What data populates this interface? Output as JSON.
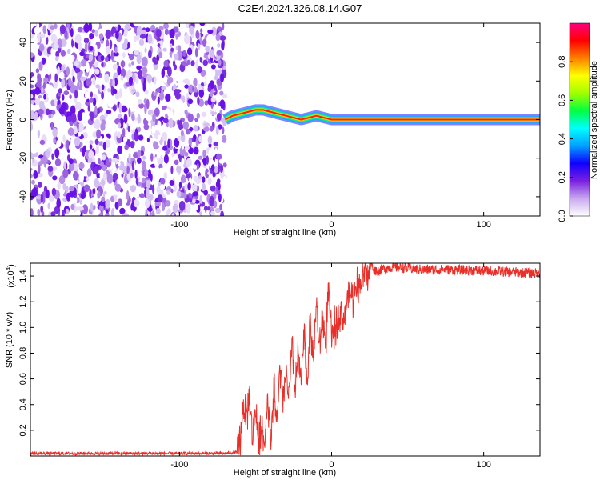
{
  "title": "C2E4.2024.326.08.14.G07",
  "chart_data": [
    {
      "type": "heatmap",
      "xlabel": "Height of straight line (km)",
      "ylabel": "Frequency (Hz)",
      "xlim": [
        -198,
        137
      ],
      "ylim": [
        -50,
        50
      ],
      "xticks": [
        -100,
        0,
        100
      ],
      "yticks": [
        -40,
        -20,
        0,
        20,
        40
      ],
      "noise_region_x": [
        -198,
        -70
      ],
      "signal_track": {
        "x": [
          -70,
          -65,
          -60,
          -55,
          -50,
          -45,
          -40,
          -35,
          -30,
          -25,
          -20,
          -15,
          -10,
          -5,
          0,
          10,
          20,
          40,
          60,
          80,
          100,
          120,
          137
        ],
        "frequency": [
          0,
          2,
          3,
          4,
          5,
          5,
          4,
          3,
          2,
          1,
          0,
          1,
          2,
          1,
          0,
          0,
          0,
          0,
          0,
          0,
          0,
          0,
          0
        ]
      },
      "colorbar": {
        "label": "Normalized spectral amplitude",
        "range": [
          0,
          1
        ],
        "ticks": [
          0.0,
          0.2,
          0.4,
          0.6,
          0.8
        ],
        "tick_labels": [
          "0.0",
          "0.2",
          "0.4",
          "0.6",
          "0.8"
        ],
        "colors": [
          "#ffffff",
          "#c8a8f0",
          "#7a20e0",
          "#1000ff",
          "#00a0ff",
          "#00ffff",
          "#00ff40",
          "#a0ff00",
          "#ffff00",
          "#ff8000",
          "#ff0000",
          "#ff0080"
        ]
      }
    },
    {
      "type": "line",
      "xlabel": "Height of straight line (km)",
      "ylabel": "SNR (10 * v/v)",
      "y_multiplier": "(x10",
      "y_multiplier_exp": "4",
      "y_multiplier_close": ")",
      "xlim": [
        -198,
        137
      ],
      "ylim": [
        0,
        1.5
      ],
      "xticks": [
        -100,
        0,
        100
      ],
      "yticks": [
        0.2,
        0.4,
        0.6,
        0.8,
        1.0,
        1.2,
        1.4
      ],
      "ytick_labels": [
        "0.2",
        "0.4",
        "0.6",
        "0.8",
        "1.0",
        "1.2",
        "1.4"
      ],
      "color": "#e8302a",
      "series": [
        {
          "x": [
            -198,
            -150,
            -100,
            -70,
            -62,
            -60,
            -58,
            -56,
            -54,
            -52,
            -50,
            -48,
            -46,
            -44,
            -42,
            -40,
            -38,
            -36,
            -34,
            -32,
            -30,
            -28,
            -26,
            -24,
            -22,
            -20,
            -18,
            -16,
            -14,
            -12,
            -10,
            -8,
            -6,
            -4,
            -2,
            0,
            2,
            4,
            6,
            8,
            10,
            12,
            14,
            16,
            18,
            20,
            22,
            24,
            26,
            28,
            30,
            35,
            40,
            50,
            60,
            80,
            100,
            120,
            137
          ],
          "y": [
            0.02,
            0.02,
            0.02,
            0.02,
            0.03,
            0.12,
            0.42,
            0.3,
            0.45,
            0.15,
            0.38,
            0.1,
            0.25,
            0.08,
            0.48,
            0.12,
            0.55,
            0.2,
            0.7,
            0.4,
            0.65,
            0.45,
            0.85,
            0.5,
            0.8,
            0.55,
            0.95,
            0.6,
            1.05,
            0.75,
            1.2,
            0.8,
            1.1,
            0.85,
            1.3,
            0.9,
            1.0,
            1.05,
            1.15,
            1.05,
            1.2,
            1.28,
            1.22,
            1.35,
            1.3,
            1.4,
            1.42,
            1.38,
            1.5,
            1.45,
            1.44,
            1.46,
            1.47,
            1.46,
            1.45,
            1.45,
            1.44,
            1.43,
            1.42
          ]
        }
      ]
    }
  ]
}
